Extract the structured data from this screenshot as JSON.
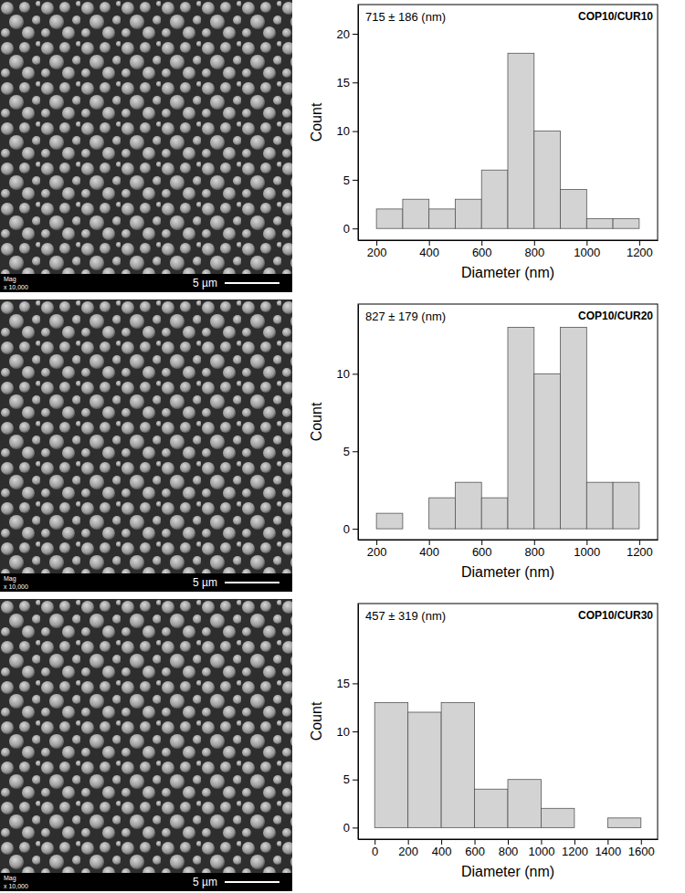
{
  "chart_data": [
    {
      "type": "histogram",
      "title": "COP10/CUR10",
      "subtitle": "715 ± 186  (nm)",
      "x_label": "Diameter (nm)",
      "y_label": "Count",
      "bins": [
        200,
        300,
        400,
        500,
        600,
        700,
        800,
        900,
        1000,
        1100,
        1200
      ],
      "counts": [
        2,
        3,
        2,
        3,
        6,
        18,
        10,
        4,
        1,
        1
      ],
      "color": "#d3d3d3",
      "xlim": [
        130,
        1270
      ],
      "xticks": [
        200,
        400,
        600,
        800,
        1000,
        1200
      ],
      "ylim": [
        -1.2,
        23
      ],
      "yticks": [
        0,
        5,
        10,
        15,
        20
      ]
    },
    {
      "type": "histogram",
      "title": "COP10/CUR20",
      "subtitle": "827 ± 179  (nm)",
      "x_label": "Diameter (nm)",
      "y_label": "Count",
      "bins": [
        200,
        300,
        400,
        500,
        600,
        700,
        800,
        900,
        1000,
        1100,
        1200
      ],
      "counts": [
        1,
        0,
        2,
        3,
        2,
        13,
        10,
        13,
        3,
        3
      ],
      "color": "#d3d3d3",
      "xlim": [
        130,
        1270
      ],
      "xticks": [
        200,
        400,
        600,
        800,
        1000,
        1200
      ],
      "ylim": [
        -0.7,
        14.5
      ],
      "yticks": [
        0,
        5,
        10
      ]
    },
    {
      "type": "histogram",
      "title": "COP10/CUR30",
      "subtitle": "457 ± 319  (nm)",
      "x_label": "Diameter (nm)",
      "y_label": "Count",
      "bins": [
        0,
        200,
        400,
        600,
        800,
        1000,
        1200,
        1400,
        1600
      ],
      "counts": [
        13,
        12,
        13,
        4,
        5,
        2,
        0,
        1
      ],
      "color": "#d3d3d3",
      "xlim": [
        -100,
        1700
      ],
      "xticks": [
        0,
        200,
        400,
        600,
        800,
        1000,
        1200,
        1400,
        1600
      ],
      "ylim": [
        -1.2,
        23.3
      ],
      "yticks": [
        0,
        5,
        10,
        15
      ]
    }
  ],
  "micrographs": [
    {
      "label": "Mag",
      "magnification": "x 10,000",
      "scale_bar": "5 µm"
    },
    {
      "label": "Mag",
      "magnification": "x 10,000",
      "scale_bar": "5 µm"
    },
    {
      "label": "Mag",
      "magnification": "x 10,000",
      "scale_bar": "5 µm"
    }
  ]
}
